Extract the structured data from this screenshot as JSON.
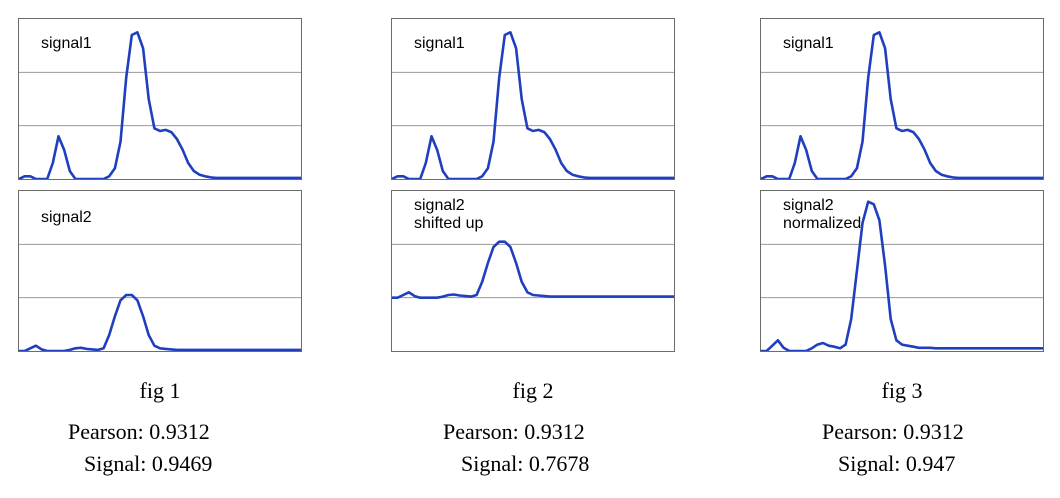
{
  "figures": [
    {
      "caption": "fig 1",
      "pearson_label": "Pearson: 0.9312",
      "signal_label": "Signal: 0.9469",
      "top_label": "signal1",
      "bottom_label": "signal2"
    },
    {
      "caption": "fig 2",
      "pearson_label": "Pearson: 0.9312",
      "signal_label": "Signal: 0.7678",
      "top_label": "signal1",
      "bottom_label": "signal2\nshifted up"
    },
    {
      "caption": "fig 3",
      "pearson_label": "Pearson: 0.9312",
      "signal_label": "Signal: 0.947",
      "top_label": "signal1",
      "bottom_label": "signal2\nnormalized"
    }
  ],
  "chart_data": [
    {
      "type": "line",
      "title": "fig 1",
      "panels": [
        {
          "label": "signal1",
          "ylim": [
            0,
            3
          ],
          "grid": true,
          "x": [
            0,
            2,
            4,
            6,
            8,
            10,
            12,
            14,
            16,
            18,
            20,
            22,
            24,
            26,
            28,
            30,
            32,
            34,
            36,
            38,
            40,
            42,
            44,
            46,
            48,
            50,
            52,
            54,
            56,
            58,
            60,
            62,
            64,
            66,
            68,
            70,
            72,
            74,
            76,
            78,
            80,
            82,
            84,
            86,
            88,
            90,
            92,
            94,
            96,
            98,
            100
          ],
          "values": [
            0,
            0.05,
            0.05,
            0,
            0,
            0,
            0.3,
            0.8,
            0.55,
            0.15,
            0,
            0,
            0,
            0,
            0,
            0,
            0.05,
            0.2,
            0.7,
            1.9,
            2.7,
            2.75,
            2.45,
            1.5,
            0.95,
            0.9,
            0.92,
            0.88,
            0.75,
            0.55,
            0.3,
            0.15,
            0.08,
            0.05,
            0.03,
            0.02,
            0.02,
            0.02,
            0.02,
            0.02,
            0.02,
            0.02,
            0.02,
            0.02,
            0.02,
            0.02,
            0.02,
            0.02,
            0.02,
            0.02,
            0.02
          ]
        },
        {
          "label": "signal2",
          "ylim": [
            0,
            3
          ],
          "grid": true,
          "x": [
            0,
            2,
            4,
            6,
            8,
            10,
            12,
            14,
            16,
            18,
            20,
            22,
            24,
            26,
            28,
            30,
            32,
            34,
            36,
            38,
            40,
            42,
            44,
            46,
            48,
            50,
            52,
            54,
            56,
            58,
            60,
            62,
            64,
            66,
            68,
            70,
            72,
            74,
            76,
            78,
            80,
            82,
            84,
            86,
            88,
            90,
            92,
            94,
            96,
            98,
            100
          ],
          "values": [
            0,
            0,
            0.05,
            0.1,
            0.03,
            0,
            0,
            0,
            0,
            0.02,
            0.05,
            0.06,
            0.04,
            0.03,
            0.02,
            0.05,
            0.3,
            0.65,
            0.95,
            1.05,
            1.05,
            0.95,
            0.65,
            0.3,
            0.1,
            0.05,
            0.04,
            0.03,
            0.02,
            0.02,
            0.02,
            0.02,
            0.02,
            0.02,
            0.02,
            0.02,
            0.02,
            0.02,
            0.02,
            0.02,
            0.02,
            0.02,
            0.02,
            0.02,
            0.02,
            0.02,
            0.02,
            0.02,
            0.02,
            0.02,
            0.02
          ]
        }
      ]
    },
    {
      "type": "line",
      "title": "fig 2",
      "panels": [
        {
          "label": "signal1",
          "ylim": [
            0,
            3
          ],
          "grid": true,
          "x": [
            0,
            2,
            4,
            6,
            8,
            10,
            12,
            14,
            16,
            18,
            20,
            22,
            24,
            26,
            28,
            30,
            32,
            34,
            36,
            38,
            40,
            42,
            44,
            46,
            48,
            50,
            52,
            54,
            56,
            58,
            60,
            62,
            64,
            66,
            68,
            70,
            72,
            74,
            76,
            78,
            80,
            82,
            84,
            86,
            88,
            90,
            92,
            94,
            96,
            98,
            100
          ],
          "values": [
            0,
            0.05,
            0.05,
            0,
            0,
            0,
            0.3,
            0.8,
            0.55,
            0.15,
            0,
            0,
            0,
            0,
            0,
            0,
            0.05,
            0.2,
            0.7,
            1.9,
            2.7,
            2.75,
            2.45,
            1.5,
            0.95,
            0.9,
            0.92,
            0.88,
            0.75,
            0.55,
            0.3,
            0.15,
            0.08,
            0.05,
            0.03,
            0.02,
            0.02,
            0.02,
            0.02,
            0.02,
            0.02,
            0.02,
            0.02,
            0.02,
            0.02,
            0.02,
            0.02,
            0.02,
            0.02,
            0.02,
            0.02
          ]
        },
        {
          "label": "signal2\nshifted up",
          "ylim": [
            0,
            3
          ],
          "grid": true,
          "x": [
            0,
            2,
            4,
            6,
            8,
            10,
            12,
            14,
            16,
            18,
            20,
            22,
            24,
            26,
            28,
            30,
            32,
            34,
            36,
            38,
            40,
            42,
            44,
            46,
            48,
            50,
            52,
            54,
            56,
            58,
            60,
            62,
            64,
            66,
            68,
            70,
            72,
            74,
            76,
            78,
            80,
            82,
            84,
            86,
            88,
            90,
            92,
            94,
            96,
            98,
            100
          ],
          "values": [
            1,
            1,
            1.05,
            1.1,
            1.03,
            1,
            1,
            1,
            1,
            1.02,
            1.05,
            1.06,
            1.04,
            1.03,
            1.02,
            1.05,
            1.3,
            1.65,
            1.95,
            2.05,
            2.05,
            1.95,
            1.65,
            1.3,
            1.1,
            1.05,
            1.04,
            1.03,
            1.02,
            1.02,
            1.02,
            1.02,
            1.02,
            1.02,
            1.02,
            1.02,
            1.02,
            1.02,
            1.02,
            1.02,
            1.02,
            1.02,
            1.02,
            1.02,
            1.02,
            1.02,
            1.02,
            1.02,
            1.02,
            1.02,
            1.02
          ]
        }
      ]
    },
    {
      "type": "line",
      "title": "fig 3",
      "panels": [
        {
          "label": "signal1",
          "ylim": [
            0,
            3
          ],
          "grid": true,
          "x": [
            0,
            2,
            4,
            6,
            8,
            10,
            12,
            14,
            16,
            18,
            20,
            22,
            24,
            26,
            28,
            30,
            32,
            34,
            36,
            38,
            40,
            42,
            44,
            46,
            48,
            50,
            52,
            54,
            56,
            58,
            60,
            62,
            64,
            66,
            68,
            70,
            72,
            74,
            76,
            78,
            80,
            82,
            84,
            86,
            88,
            90,
            92,
            94,
            96,
            98,
            100
          ],
          "values": [
            0,
            0.05,
            0.05,
            0,
            0,
            0,
            0.3,
            0.8,
            0.55,
            0.15,
            0,
            0,
            0,
            0,
            0,
            0,
            0.05,
            0.2,
            0.7,
            1.9,
            2.7,
            2.75,
            2.45,
            1.5,
            0.95,
            0.9,
            0.92,
            0.88,
            0.75,
            0.55,
            0.3,
            0.15,
            0.08,
            0.05,
            0.03,
            0.02,
            0.02,
            0.02,
            0.02,
            0.02,
            0.02,
            0.02,
            0.02,
            0.02,
            0.02,
            0.02,
            0.02,
            0.02,
            0.02,
            0.02,
            0.02
          ]
        },
        {
          "label": "signal2\nnormalized",
          "ylim": [
            0,
            3
          ],
          "grid": true,
          "x": [
            0,
            2,
            4,
            6,
            8,
            10,
            12,
            14,
            16,
            18,
            20,
            22,
            24,
            26,
            28,
            30,
            32,
            34,
            36,
            38,
            40,
            42,
            44,
            46,
            48,
            50,
            52,
            54,
            56,
            58,
            60,
            62,
            64,
            66,
            68,
            70,
            72,
            74,
            76,
            78,
            80,
            82,
            84,
            86,
            88,
            90,
            92,
            94,
            96,
            98,
            100
          ],
          "values": [
            0,
            0,
            0.1,
            0.2,
            0.06,
            0,
            0,
            0,
            0,
            0.05,
            0.12,
            0.15,
            0.1,
            0.08,
            0.05,
            0.12,
            0.6,
            1.5,
            2.4,
            2.8,
            2.75,
            2.45,
            1.6,
            0.6,
            0.2,
            0.12,
            0.1,
            0.08,
            0.06,
            0.06,
            0.06,
            0.05,
            0.05,
            0.05,
            0.05,
            0.05,
            0.05,
            0.05,
            0.05,
            0.05,
            0.05,
            0.05,
            0.05,
            0.05,
            0.05,
            0.05,
            0.05,
            0.05,
            0.05,
            0.05,
            0.05
          ]
        }
      ]
    }
  ]
}
